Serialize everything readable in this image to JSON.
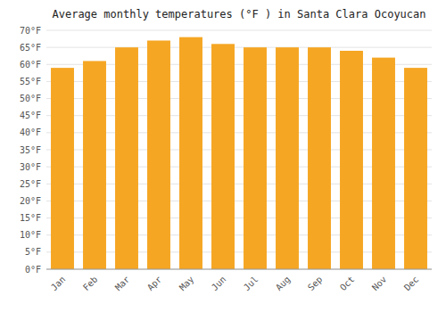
{
  "chart_data": {
    "type": "bar",
    "title": "Average monthly temperatures (°F ) in Santa Clara Ocoyucan",
    "categories": [
      "Jan",
      "Feb",
      "Mar",
      "Apr",
      "May",
      "Jun",
      "Jul",
      "Aug",
      "Sep",
      "Oct",
      "Nov",
      "Dec"
    ],
    "values": [
      59,
      61,
      65,
      67,
      68,
      66,
      65,
      65,
      65,
      64,
      62,
      59
    ],
    "color": "#F5A623",
    "ylim": [
      0,
      70
    ],
    "yticks": [
      {
        "value": 0,
        "label": "0°F"
      },
      {
        "value": 5,
        "label": "5°F"
      },
      {
        "value": 10,
        "label": "10°F"
      },
      {
        "value": 15,
        "label": "15°F"
      },
      {
        "value": 20,
        "label": "20°F"
      },
      {
        "value": 25,
        "label": "25°F"
      },
      {
        "value": 30,
        "label": "30°F"
      },
      {
        "value": 35,
        "label": "35°F"
      },
      {
        "value": 40,
        "label": "40°F"
      },
      {
        "value": 45,
        "label": "45°F"
      },
      {
        "value": 50,
        "label": "50°F"
      },
      {
        "value": 55,
        "label": "55°F"
      },
      {
        "value": 60,
        "label": "60°F"
      },
      {
        "value": 65,
        "label": "65°F"
      },
      {
        "value": 70,
        "label": "70°F"
      }
    ],
    "grid": true
  }
}
